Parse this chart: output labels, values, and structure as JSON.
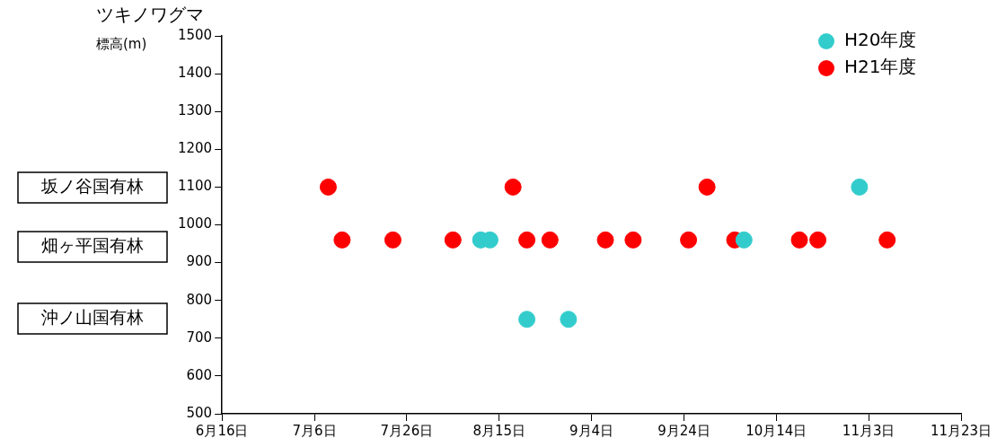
{
  "chart_data": {
    "type": "scatter",
    "title": "ツキノワグマ",
    "ylabel": "標高(m)",
    "series": [
      {
        "name": "H20年度",
        "color": "#33cccc",
        "x": [
          "--08-11",
          "--08-13",
          "--08-21",
          "--08-30",
          "--10-07",
          "--11-01"
        ],
        "values": [
          960,
          960,
          750,
          750,
          960,
          1100
        ]
      },
      {
        "name": "H21年度",
        "color": "#ff0000",
        "x": [
          "--07-09",
          "--07-12",
          "--07-23",
          "--08-05",
          "--08-18",
          "--08-21",
          "--08-26",
          "--09-07",
          "--09-13",
          "--09-25",
          "--09-29",
          "--10-05",
          "--10-19",
          "--10-23",
          "--11-07"
        ],
        "values": [
          1100,
          960,
          960,
          960,
          1100,
          960,
          960,
          960,
          960,
          960,
          1100,
          960,
          960,
          960,
          960
        ]
      }
    ],
    "xlim": [
      "--06-16",
      "--11-23"
    ],
    "xticks": [
      {
        "value": "--06-16",
        "label": "6月16日"
      },
      {
        "value": "--07-06",
        "label": "7月6日"
      },
      {
        "value": "--07-26",
        "label": "7月26日"
      },
      {
        "value": "--08-15",
        "label": "8月15日"
      },
      {
        "value": "--09-04",
        "label": "9月4日"
      },
      {
        "value": "--09-24",
        "label": "9月24日"
      },
      {
        "value": "--10-14",
        "label": "10月14日"
      },
      {
        "value": "--11-03",
        "label": "11月3日"
      },
      {
        "value": "--11-23",
        "label": "11月23日"
      }
    ],
    "ylim": [
      500,
      1500
    ],
    "yticks": [
      500,
      600,
      700,
      800,
      900,
      1000,
      1100,
      1200,
      1300,
      1400,
      1500
    ],
    "annotations": [
      "坂ノ谷国有林",
      "畑ヶ平国有林",
      "沖ノ山国有林"
    ],
    "grid": false,
    "legend": "top right",
    "marker": "circle"
  }
}
